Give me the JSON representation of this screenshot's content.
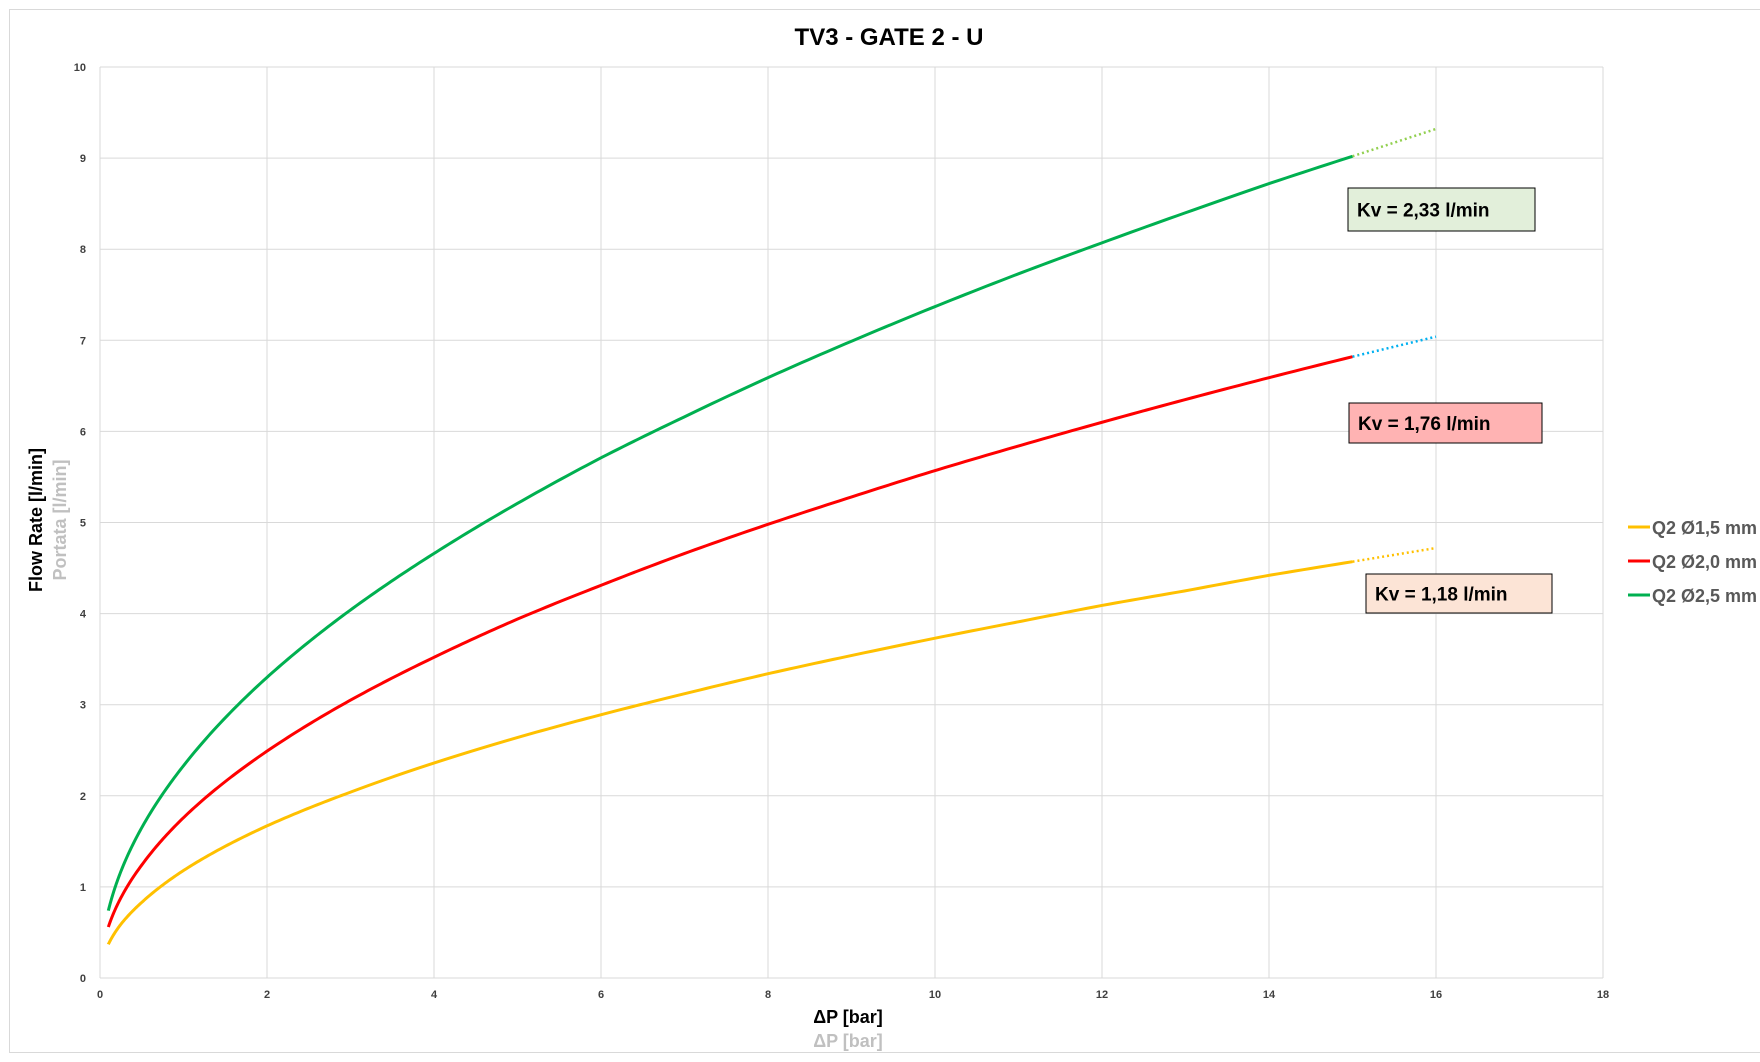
{
  "chart_data": {
    "type": "line",
    "title": "TV3 - GATE 2  - U",
    "xlabel": "ΔP [bar]",
    "xlabel_secondary": "ΔP [bar]",
    "ylabel": "Flow Rate [l/min]",
    "ylabel_secondary": "Portata [l/min]",
    "xlim": [
      0,
      18
    ],
    "ylim": [
      0,
      10
    ],
    "x_ticks": [
      "0",
      "2",
      "4",
      "6",
      "8",
      "10",
      "12",
      "14",
      "16",
      "18"
    ],
    "y_ticks": [
      "0",
      "1",
      "2",
      "3",
      "4",
      "5",
      "6",
      "7",
      "8",
      "9",
      "10"
    ],
    "grid": true,
    "legend_position": "right",
    "series": [
      {
        "name": "Q2 Ø1,5 mm",
        "color": "#ffc000",
        "extension_color": "#ffc000",
        "kv": 1.18,
        "x": [
          0.1,
          0.25,
          0.5,
          1,
          2,
          3,
          4,
          5,
          6,
          7,
          8,
          9,
          10,
          11,
          12,
          13,
          14,
          15
        ],
        "y": [
          0.37,
          0.59,
          0.83,
          1.18,
          1.67,
          2.04,
          2.36,
          2.64,
          2.89,
          3.12,
          3.34,
          3.54,
          3.73,
          3.91,
          4.09,
          4.25,
          4.42,
          4.57
        ],
        "extension_x": [
          15,
          16
        ],
        "extension_y": [
          4.57,
          4.72
        ]
      },
      {
        "name": "Q2 Ø2,0 mm",
        "color": "#ff0000",
        "extension_color": "#00b0f0",
        "kv": 1.76,
        "x": [
          0.1,
          0.25,
          0.5,
          1,
          2,
          3,
          4,
          5,
          6,
          7,
          8,
          9,
          10,
          11,
          12,
          13,
          14,
          15
        ],
        "y": [
          0.56,
          0.88,
          1.24,
          1.76,
          2.49,
          3.05,
          3.52,
          3.94,
          4.31,
          4.66,
          4.98,
          5.28,
          5.57,
          5.84,
          6.1,
          6.35,
          6.59,
          6.82
        ],
        "extension_x": [
          15,
          16
        ],
        "extension_y": [
          6.82,
          7.04
        ]
      },
      {
        "name": "Q2 Ø2,5 mm",
        "color": "#00b050",
        "extension_color": "#92d050",
        "kv": 2.33,
        "x": [
          0.1,
          0.25,
          0.5,
          1,
          2,
          3,
          4,
          5,
          6,
          7,
          8,
          9,
          10,
          11,
          12,
          13,
          14,
          15
        ],
        "y": [
          0.74,
          1.17,
          1.65,
          2.33,
          3.3,
          4.04,
          4.66,
          5.21,
          5.71,
          6.16,
          6.59,
          6.99,
          7.37,
          7.73,
          8.07,
          8.4,
          8.72,
          9.02
        ],
        "extension_x": [
          15,
          16
        ],
        "extension_y": [
          9.02,
          9.32
        ]
      }
    ],
    "annotations": [
      {
        "text": "Kv = 2,33 l/min",
        "series": "Q2 Ø2,5 mm",
        "fill": "#e2efda"
      },
      {
        "text": "Kv = 1,76 l/min",
        "series": "Q2 Ø2,0 mm",
        "fill": "#ffb3b3"
      },
      {
        "text": "Kv = 1,18 l/min",
        "series": "Q2 Ø1,5 mm",
        "fill": "#fce4d6"
      }
    ]
  }
}
